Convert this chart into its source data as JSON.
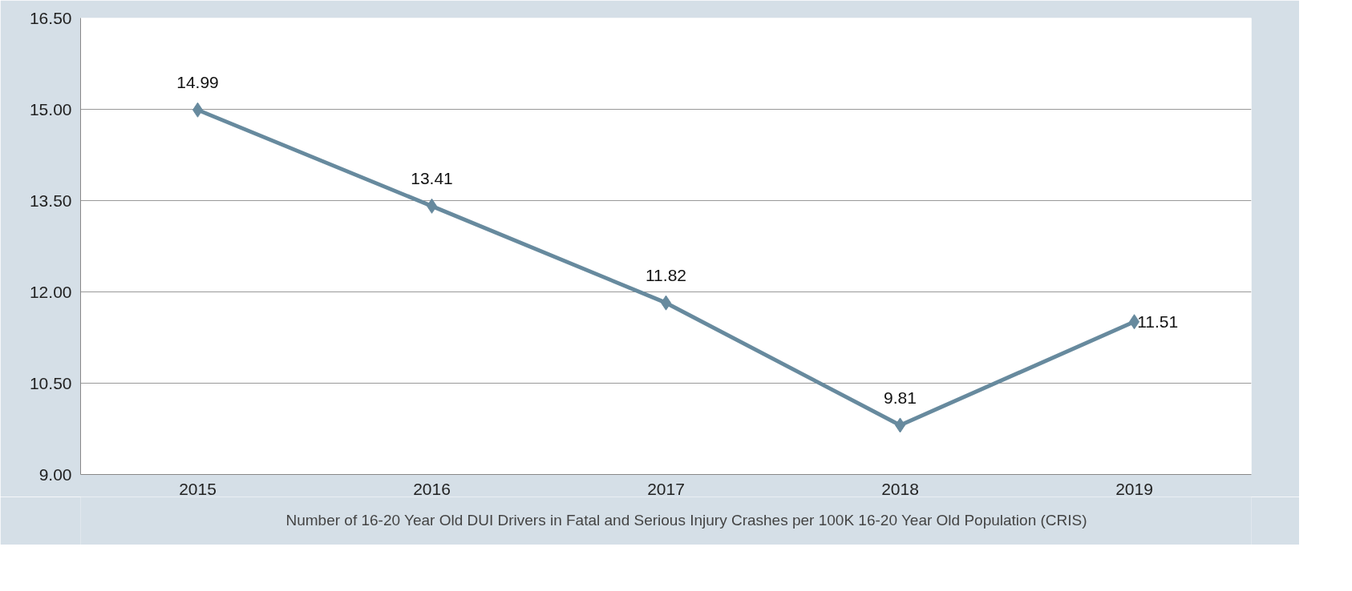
{
  "chart_data": {
    "type": "line",
    "categories": [
      "2015",
      "2016",
      "2017",
      "2018",
      "2019"
    ],
    "series": [
      {
        "name": "Number of 16-20 Year Old DUI Drivers in Fatal and Serious Injury Crashes per 100K 16-20 Year Old Population (CRIS)",
        "color": "#678a9e",
        "values": [
          14.99,
          13.41,
          11.82,
          9.81,
          11.51
        ]
      }
    ],
    "ylim": [
      9,
      16.5
    ],
    "yticks": [
      {
        "value": 9,
        "label": "9.00"
      },
      {
        "value": 10.5,
        "label": "10.50"
      },
      {
        "value": 12,
        "label": "12.00"
      },
      {
        "value": 13.5,
        "label": "13.50"
      },
      {
        "value": 15,
        "label": "15.00"
      },
      {
        "value": 16.5,
        "label": "16.50"
      }
    ],
    "grid": "y",
    "legend": "bottom",
    "marker": "diamond",
    "line_style": "solid",
    "data_labels": true
  }
}
